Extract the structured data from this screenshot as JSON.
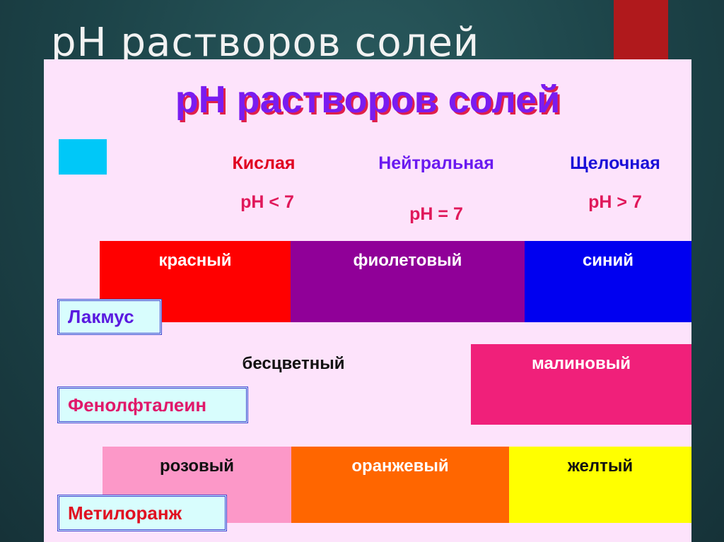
{
  "slide": {
    "title": "pH растворов солей"
  },
  "panel": {
    "title": "pH растворов солей",
    "legend_square_color": "#00c8f8",
    "media": [
      {
        "label": "Кислая",
        "ph": "pH < 7",
        "color": "#e00020"
      },
      {
        "label": "Нейтральная",
        "ph": "pH = 7",
        "color": "#6a1af0"
      },
      {
        "label": "Щелочная",
        "ph": "pH > 7",
        "color": "#1a10d8"
      }
    ],
    "indicators": [
      {
        "name": "Лакмус",
        "name_color": "#5a1ae0",
        "colors": [
          {
            "label": "красный",
            "color": "#ff0000",
            "text": "#ffffff"
          },
          {
            "label": "фиолетовый",
            "color": "#900098",
            "text": "#ffffff"
          },
          {
            "label": "синий",
            "color": "#0000f0",
            "text": "#ffffff"
          }
        ]
      },
      {
        "name": "Фенолфталеин",
        "name_color": "#e0186a",
        "colors": [
          {
            "label": "бесцветный",
            "color": "transparent",
            "text": "#111111"
          },
          {
            "label": "малиновый",
            "color": "#f0207a",
            "text": "#ffffff"
          }
        ]
      },
      {
        "name": "Метилоранж",
        "name_color": "#e01020",
        "colors": [
          {
            "label": "розовый",
            "color": "#fc98c8",
            "text": "#111111"
          },
          {
            "label": "оранжевый",
            "color": "#ff6600",
            "text": "#ffffff"
          },
          {
            "label": "желтый",
            "color": "#ffff00",
            "text": "#111111"
          }
        ]
      }
    ]
  }
}
